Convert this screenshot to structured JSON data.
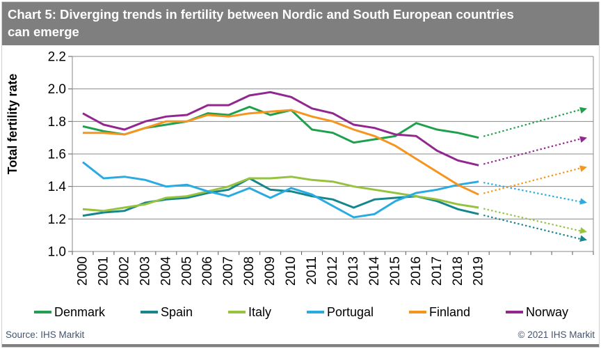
{
  "header": {
    "title_line1": "Chart 5: Diverging trends in fertility between Nordic and South European countries",
    "title_line2": "can emerge",
    "background": "#7f7f7f",
    "text_color": "#ffffff"
  },
  "footer": {
    "source": "Source: IHS Markit",
    "copyright": "© 2021 IHS Markit",
    "text_color": "#44546a"
  },
  "chart_data": {
    "type": "line",
    "title": "Chart 5: Diverging trends in fertility between Nordic and South European countries can emerge",
    "ylabel": "Total fertility rate",
    "xlabel": "",
    "ylim": [
      1.0,
      2.2
    ],
    "ytick_step": 0.2,
    "ytick_labels": [
      "1.0",
      "1.2",
      "1.4",
      "1.6",
      "1.8",
      "2.0",
      "2.2"
    ],
    "x": [
      2000,
      2001,
      2002,
      2003,
      2004,
      2005,
      2006,
      2007,
      2008,
      2009,
      2010,
      2011,
      2012,
      2013,
      2014,
      2015,
      2016,
      2017,
      2018,
      2019
    ],
    "x_axis": {
      "start_year": 2000,
      "end_year": 2025,
      "labels_through": 2019,
      "label_rotation_deg": -90
    },
    "grid": true,
    "grid_color": "#8a8a8a",
    "tick_color": "#595959",
    "legend_position": "bottom",
    "projection_note": "dotted arrows extend each series beyond 2019 toward ~2025",
    "series": [
      {
        "name": "Denmark",
        "color": "#1fa04c",
        "values": [
          1.77,
          1.74,
          1.72,
          1.76,
          1.78,
          1.8,
          1.85,
          1.84,
          1.89,
          1.84,
          1.87,
          1.75,
          1.73,
          1.67,
          1.69,
          1.71,
          1.79,
          1.75,
          1.73,
          1.7
        ],
        "projection_end_value": 1.88
      },
      {
        "name": "Spain",
        "color": "#15868c",
        "values": [
          1.22,
          1.24,
          1.25,
          1.3,
          1.32,
          1.33,
          1.36,
          1.38,
          1.45,
          1.38,
          1.37,
          1.34,
          1.32,
          1.27,
          1.32,
          1.33,
          1.34,
          1.31,
          1.26,
          1.23
        ],
        "projection_end_value": 1.07
      },
      {
        "name": "Italy",
        "color": "#96c23d",
        "values": [
          1.26,
          1.25,
          1.27,
          1.29,
          1.33,
          1.34,
          1.37,
          1.4,
          1.45,
          1.45,
          1.46,
          1.44,
          1.43,
          1.4,
          1.38,
          1.36,
          1.34,
          1.32,
          1.29,
          1.27
        ],
        "projection_end_value": 1.12
      },
      {
        "name": "Portugal",
        "color": "#29abe2",
        "values": [
          1.55,
          1.45,
          1.46,
          1.44,
          1.4,
          1.41,
          1.37,
          1.34,
          1.39,
          1.33,
          1.39,
          1.35,
          1.28,
          1.21,
          1.23,
          1.31,
          1.36,
          1.38,
          1.41,
          1.43
        ],
        "projection_end_value": 1.3
      },
      {
        "name": "Finland",
        "color": "#f7941e",
        "values": [
          1.73,
          1.73,
          1.72,
          1.76,
          1.8,
          1.8,
          1.84,
          1.83,
          1.85,
          1.86,
          1.87,
          1.83,
          1.8,
          1.75,
          1.71,
          1.65,
          1.57,
          1.49,
          1.41,
          1.35
        ],
        "projection_end_value": 1.52
      },
      {
        "name": "Norway",
        "color": "#92278f",
        "values": [
          1.85,
          1.78,
          1.75,
          1.8,
          1.83,
          1.84,
          1.9,
          1.9,
          1.96,
          1.98,
          1.95,
          1.88,
          1.85,
          1.78,
          1.76,
          1.72,
          1.71,
          1.62,
          1.56,
          1.53
        ],
        "projection_end_value": 1.7
      }
    ]
  }
}
